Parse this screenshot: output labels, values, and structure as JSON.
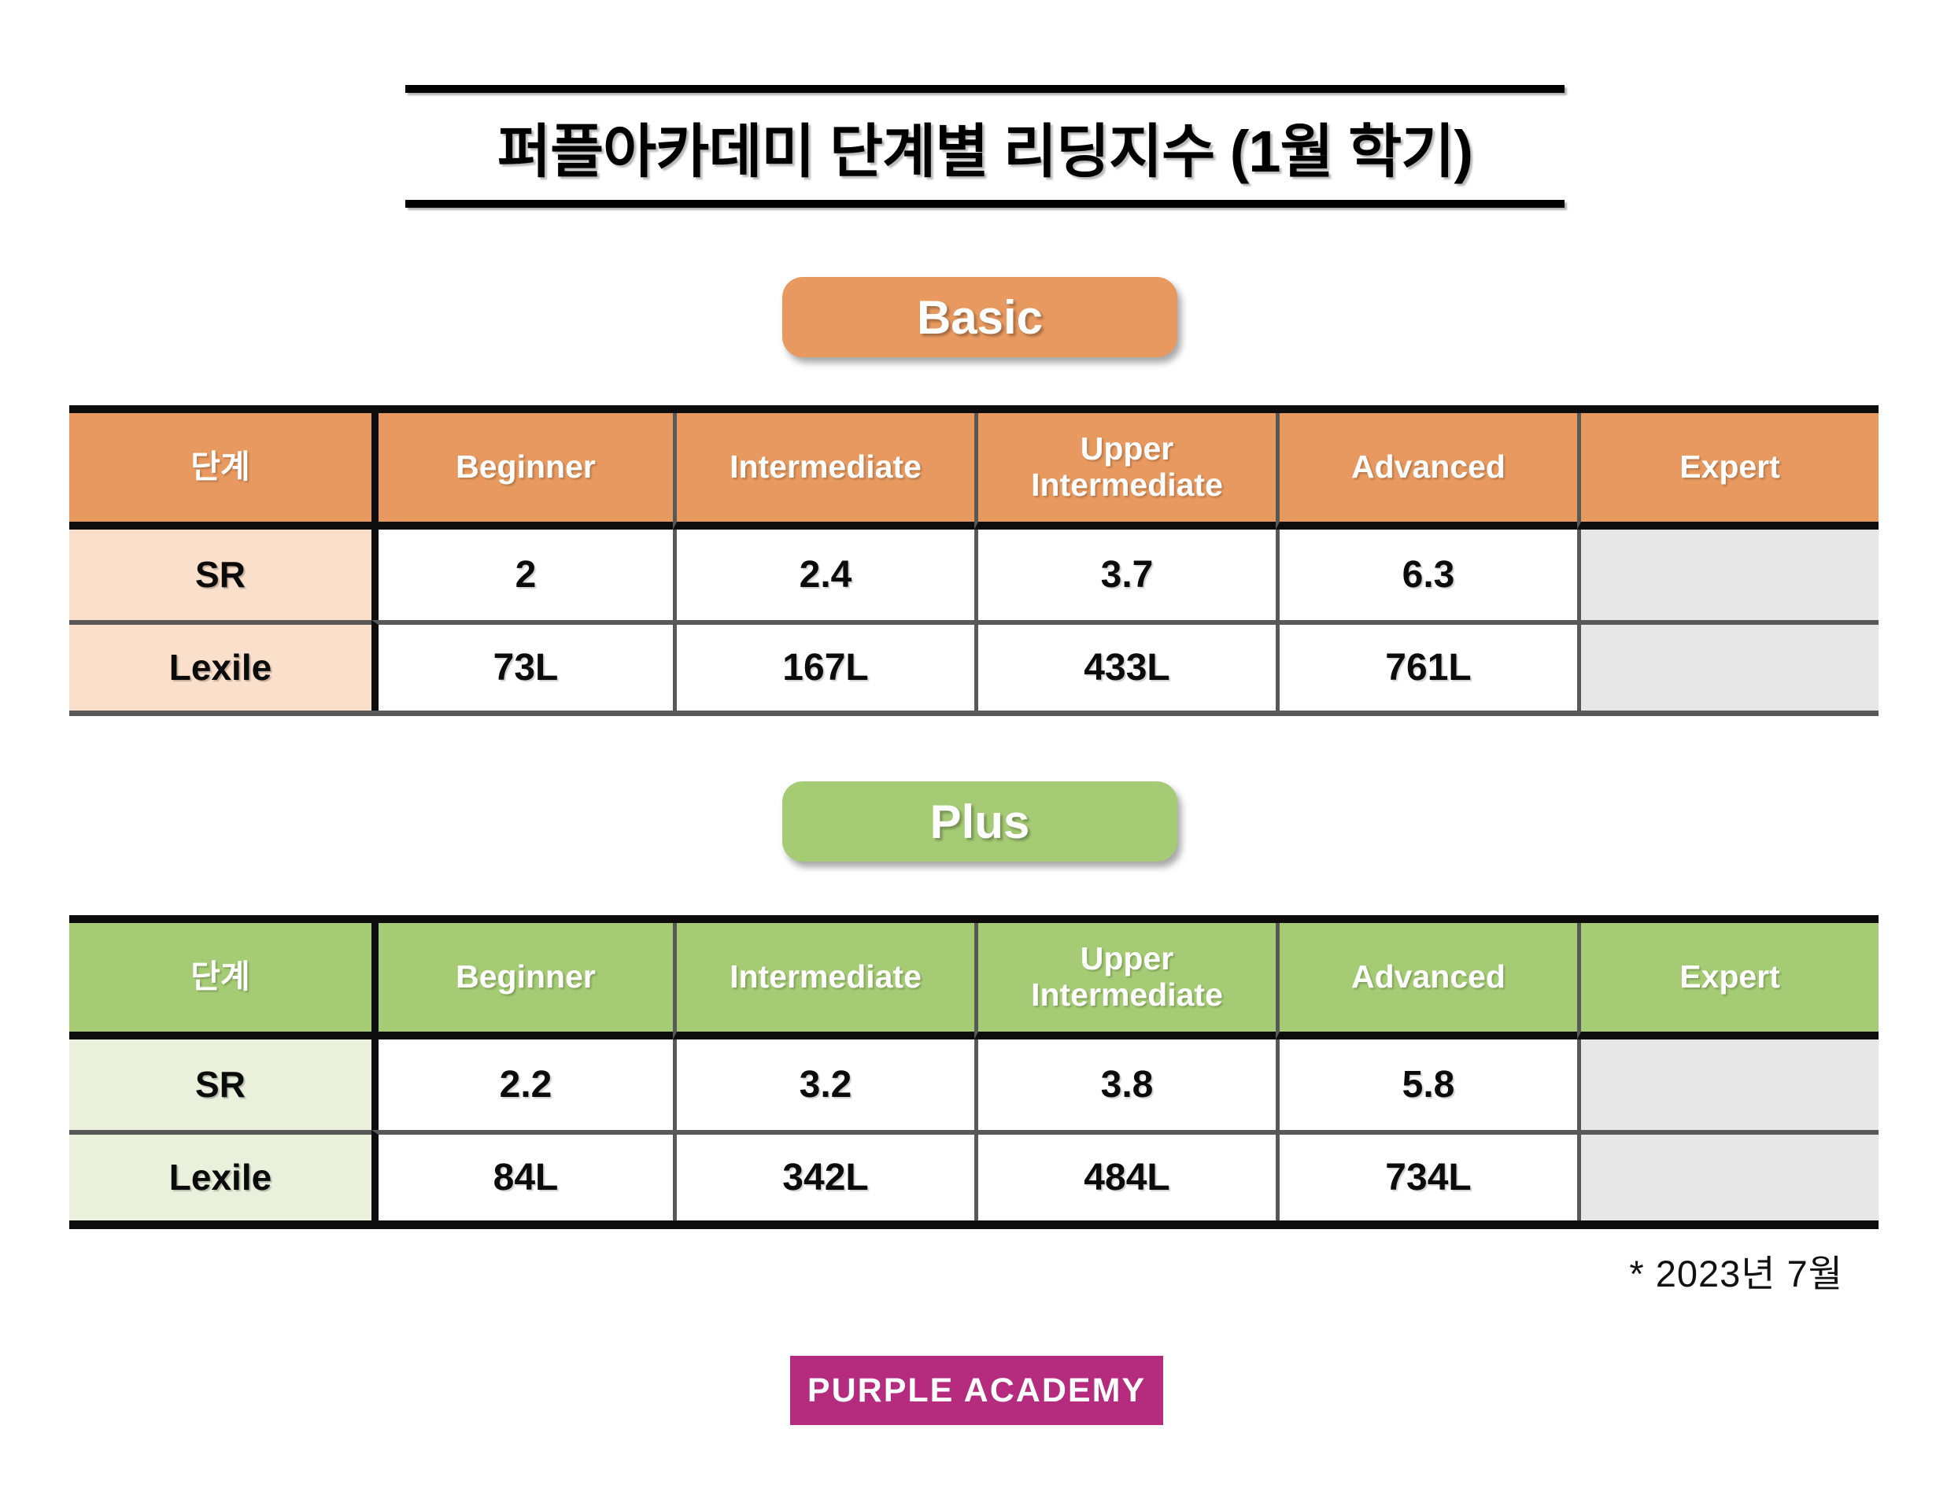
{
  "title": "퍼플아카데미 단계별 리딩지수 (1월 학기)",
  "footnote": "* 2023년  7월",
  "logo_text": "PURPLE ACADEMY",
  "colors": {
    "basic": "#E8995F",
    "basic_tint": "#FADFCB",
    "plus": "#A5CC74",
    "plus_tint": "#E9F1DD",
    "empty_cell": "#E7E7E7",
    "logo_bg": "#B52B7D",
    "border_black": "#0d0d0d",
    "border_gray": "#585858"
  },
  "basic": {
    "badge": "Basic",
    "columns": [
      "단계",
      "Beginner",
      "Intermediate",
      "Upper Intermediate",
      "Advanced",
      "Expert"
    ],
    "rows": [
      {
        "label": "SR",
        "values": [
          "2",
          "2.4",
          "3.7",
          "6.3",
          ""
        ]
      },
      {
        "label": "Lexile",
        "values": [
          "73L",
          "167L",
          "433L",
          "761L",
          ""
        ]
      }
    ]
  },
  "plus": {
    "badge": "Plus",
    "columns": [
      "단계",
      "Beginner",
      "Intermediate",
      "Upper Intermediate",
      "Advanced",
      "Expert"
    ],
    "rows": [
      {
        "label": "SR",
        "values": [
          "2.2",
          "3.2",
          "3.8",
          "5.8",
          ""
        ]
      },
      {
        "label": "Lexile",
        "values": [
          "84L",
          "342L",
          "484L",
          "734L",
          ""
        ]
      }
    ]
  }
}
